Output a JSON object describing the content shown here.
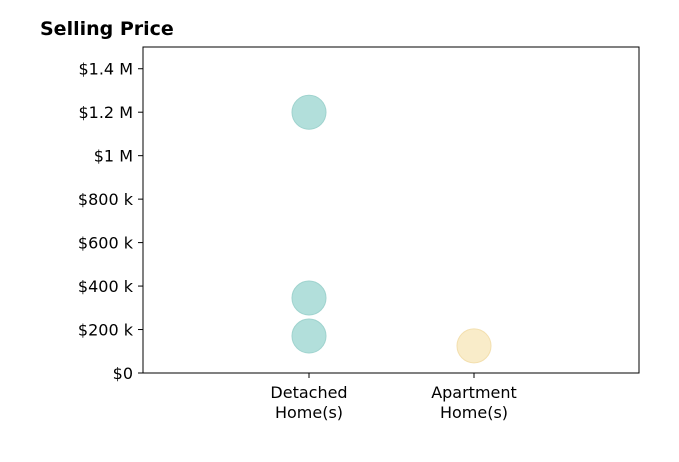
{
  "chart_data": {
    "type": "scatter",
    "title": "Selling Price",
    "xlabel": "",
    "ylabel": "",
    "categories": [
      [
        "Detached",
        "Home(s)"
      ],
      [
        "Apartment",
        "Home(s)"
      ]
    ],
    "ylim": [
      0,
      1500000
    ],
    "yticks": [
      0,
      200000,
      400000,
      600000,
      800000,
      1000000,
      1200000,
      1400000
    ],
    "ytick_labels": [
      "$0",
      "$200 k",
      "$400 k",
      "$600 k",
      "$800 k",
      "$1 M",
      "$1.2 M",
      "$1.4 M"
    ],
    "grid": false,
    "legend": "none",
    "points": [
      {
        "category": 0,
        "y": 1200000,
        "color": "#b2dfdb"
      },
      {
        "category": 0,
        "y": 345000,
        "color": "#b2dfdb"
      },
      {
        "category": 0,
        "y": 170000,
        "color": "#b2dfdb"
      },
      {
        "category": 1,
        "y": 125000,
        "color": "#f9ecc9"
      }
    ],
    "colors": {
      "detached": "#b2dfdb",
      "detached_edge": "#9fd3ce",
      "apartment": "#f9ecc9",
      "apartment_edge": "#f3dfae"
    }
  }
}
